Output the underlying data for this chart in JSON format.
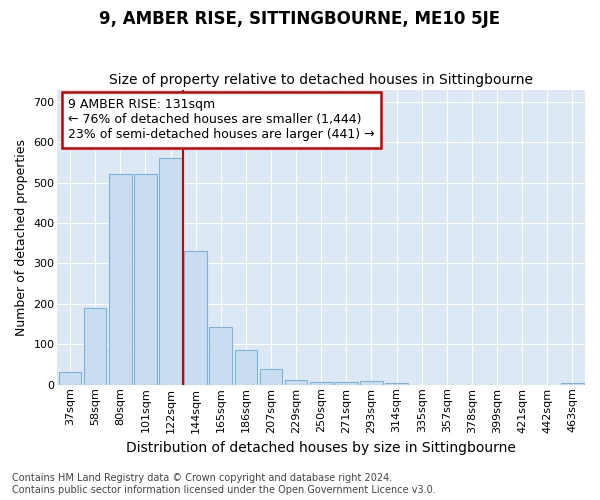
{
  "title": "9, AMBER RISE, SITTINGBOURNE, ME10 5JE",
  "subtitle": "Size of property relative to detached houses in Sittingbourne",
  "xlabel": "Distribution of detached houses by size in Sittingbourne",
  "ylabel": "Number of detached properties",
  "footnote": "Contains HM Land Registry data © Crown copyright and database right 2024.\nContains public sector information licensed under the Open Government Licence v3.0.",
  "categories": [
    "37sqm",
    "58sqm",
    "80sqm",
    "101sqm",
    "122sqm",
    "144sqm",
    "165sqm",
    "186sqm",
    "207sqm",
    "229sqm",
    "250sqm",
    "271sqm",
    "293sqm",
    "314sqm",
    "335sqm",
    "357sqm",
    "378sqm",
    "399sqm",
    "421sqm",
    "442sqm",
    "463sqm"
  ],
  "values": [
    32,
    190,
    520,
    520,
    560,
    330,
    142,
    87,
    40,
    13,
    8,
    8,
    10,
    5,
    0,
    0,
    0,
    0,
    0,
    0,
    5
  ],
  "bar_color": "#c9ddf0",
  "bar_edge_color": "#7fb3d9",
  "bar_linewidth": 0.8,
  "vline_color": "#cc0000",
  "annotation_line1": "9 AMBER RISE: 131sqm",
  "annotation_line2": "← 76% of detached houses are smaller (1,444)",
  "annotation_line3": "23% of semi-detached houses are larger (441) →",
  "annotation_box_facecolor": "#ffffff",
  "annotation_box_edgecolor": "#cc0000",
  "ylim": [
    0,
    730
  ],
  "yticks": [
    0,
    100,
    200,
    300,
    400,
    500,
    600,
    700
  ],
  "bg_color": "#ffffff",
  "plot_bg_color": "#dce8f4",
  "title_fontsize": 12,
  "subtitle_fontsize": 10,
  "xlabel_fontsize": 10,
  "ylabel_fontsize": 9,
  "tick_fontsize": 8,
  "annotation_fontsize": 9,
  "footnote_fontsize": 7
}
